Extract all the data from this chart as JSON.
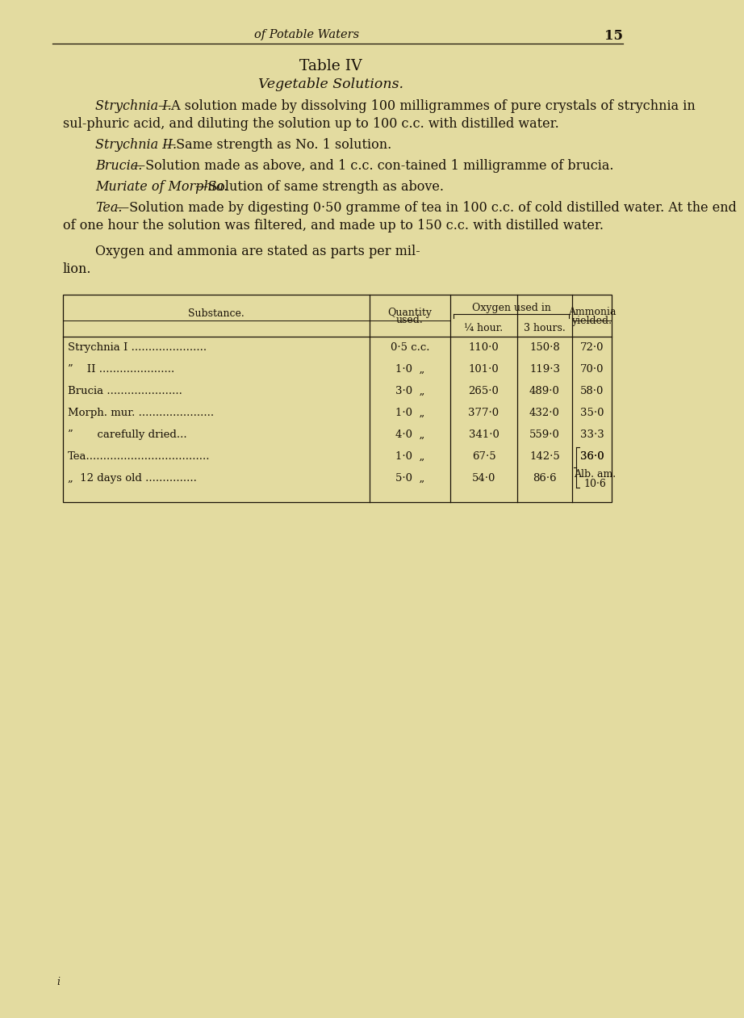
{
  "bg_color": "#e3dba0",
  "text_color": "#1a1208",
  "header_italic": "of Potable Waters",
  "page_number": "15",
  "title": "Table IV",
  "subtitle": "Vegetable Solutions.",
  "para1_prefix": "Strychnia I.",
  "para1_rest": "—A solution made by dissolving 100 milligrammes of pure crystals of strychnia in sul-phuric acid, and diluting the solution up to 100 c.c. with distilled water.",
  "para2_prefix": "Strychnia II.",
  "para2_rest": "—Same strength as No. 1 solution.",
  "para3_prefix": "Brucia.",
  "para3_rest": "—Solution made as above, and 1 c.c. con-tained 1 milligramme of brucia.",
  "para4_prefix": "Muriate of Morphia.",
  "para4_rest": "—Solution of same strength as above.",
  "para5_prefix": "Tea.",
  "para5_rest": "—Solution made by digesting 0·50 gramme of tea in 100 c.c. of cold distilled water.  At the end of one hour the solution was filtered, and made up to 150 c.c. with distilled water.",
  "note_line1": "Oxygen and ammonia are stated as parts per mil-",
  "note_line2": "lion.",
  "tbl_sub_col": "Substance.",
  "tbl_qty_col": "Quantity",
  "tbl_qty_col2": "used.",
  "tbl_oxy_header": "Oxygen used in",
  "tbl_quarter": "¼ hour.",
  "tbl_3hours": "3 hours.",
  "tbl_ammonia": "Ammonia",
  "tbl_ammonia2": "yielded.",
  "rows": [
    {
      "substance": "Strychnia I ......................",
      "qty": "0·5 c.c.",
      "q_hour": "110·0",
      "h3": "150·8",
      "amm": "72·0",
      "amm_special": false
    },
    {
      "substance": "”    II ......................",
      "qty": "1·0  „",
      "q_hour": "101·0",
      "h3": "119·3",
      "amm": "70·0",
      "amm_special": false
    },
    {
      "substance": "Brucia ......................",
      "qty": "3·0  „",
      "q_hour": "265·0",
      "h3": "489·0",
      "amm": "58·0",
      "amm_special": false
    },
    {
      "substance": "Morph. mur. ......................",
      "qty": "1·0  „",
      "q_hour": "377·0",
      "h3": "432·0",
      "amm": "35·0",
      "amm_special": false
    },
    {
      "substance": "”       carefully dried...",
      "qty": "4·0  „",
      "q_hour": "341·0",
      "h3": "559·0",
      "amm": "33·3",
      "amm_special": false
    },
    {
      "substance": "Tea....................................",
      "qty": "1·0  „",
      "q_hour": "67·5",
      "h3": "142·5",
      "amm": "36·0",
      "amm_special": false
    },
    {
      "substance": "„  12 days old ...............",
      "qty": "5·0  „",
      "q_hour": "54·0",
      "h3": "86·6",
      "amm": "Alb. am.\n10·6",
      "amm_special": true
    }
  ],
  "footnote": "i"
}
